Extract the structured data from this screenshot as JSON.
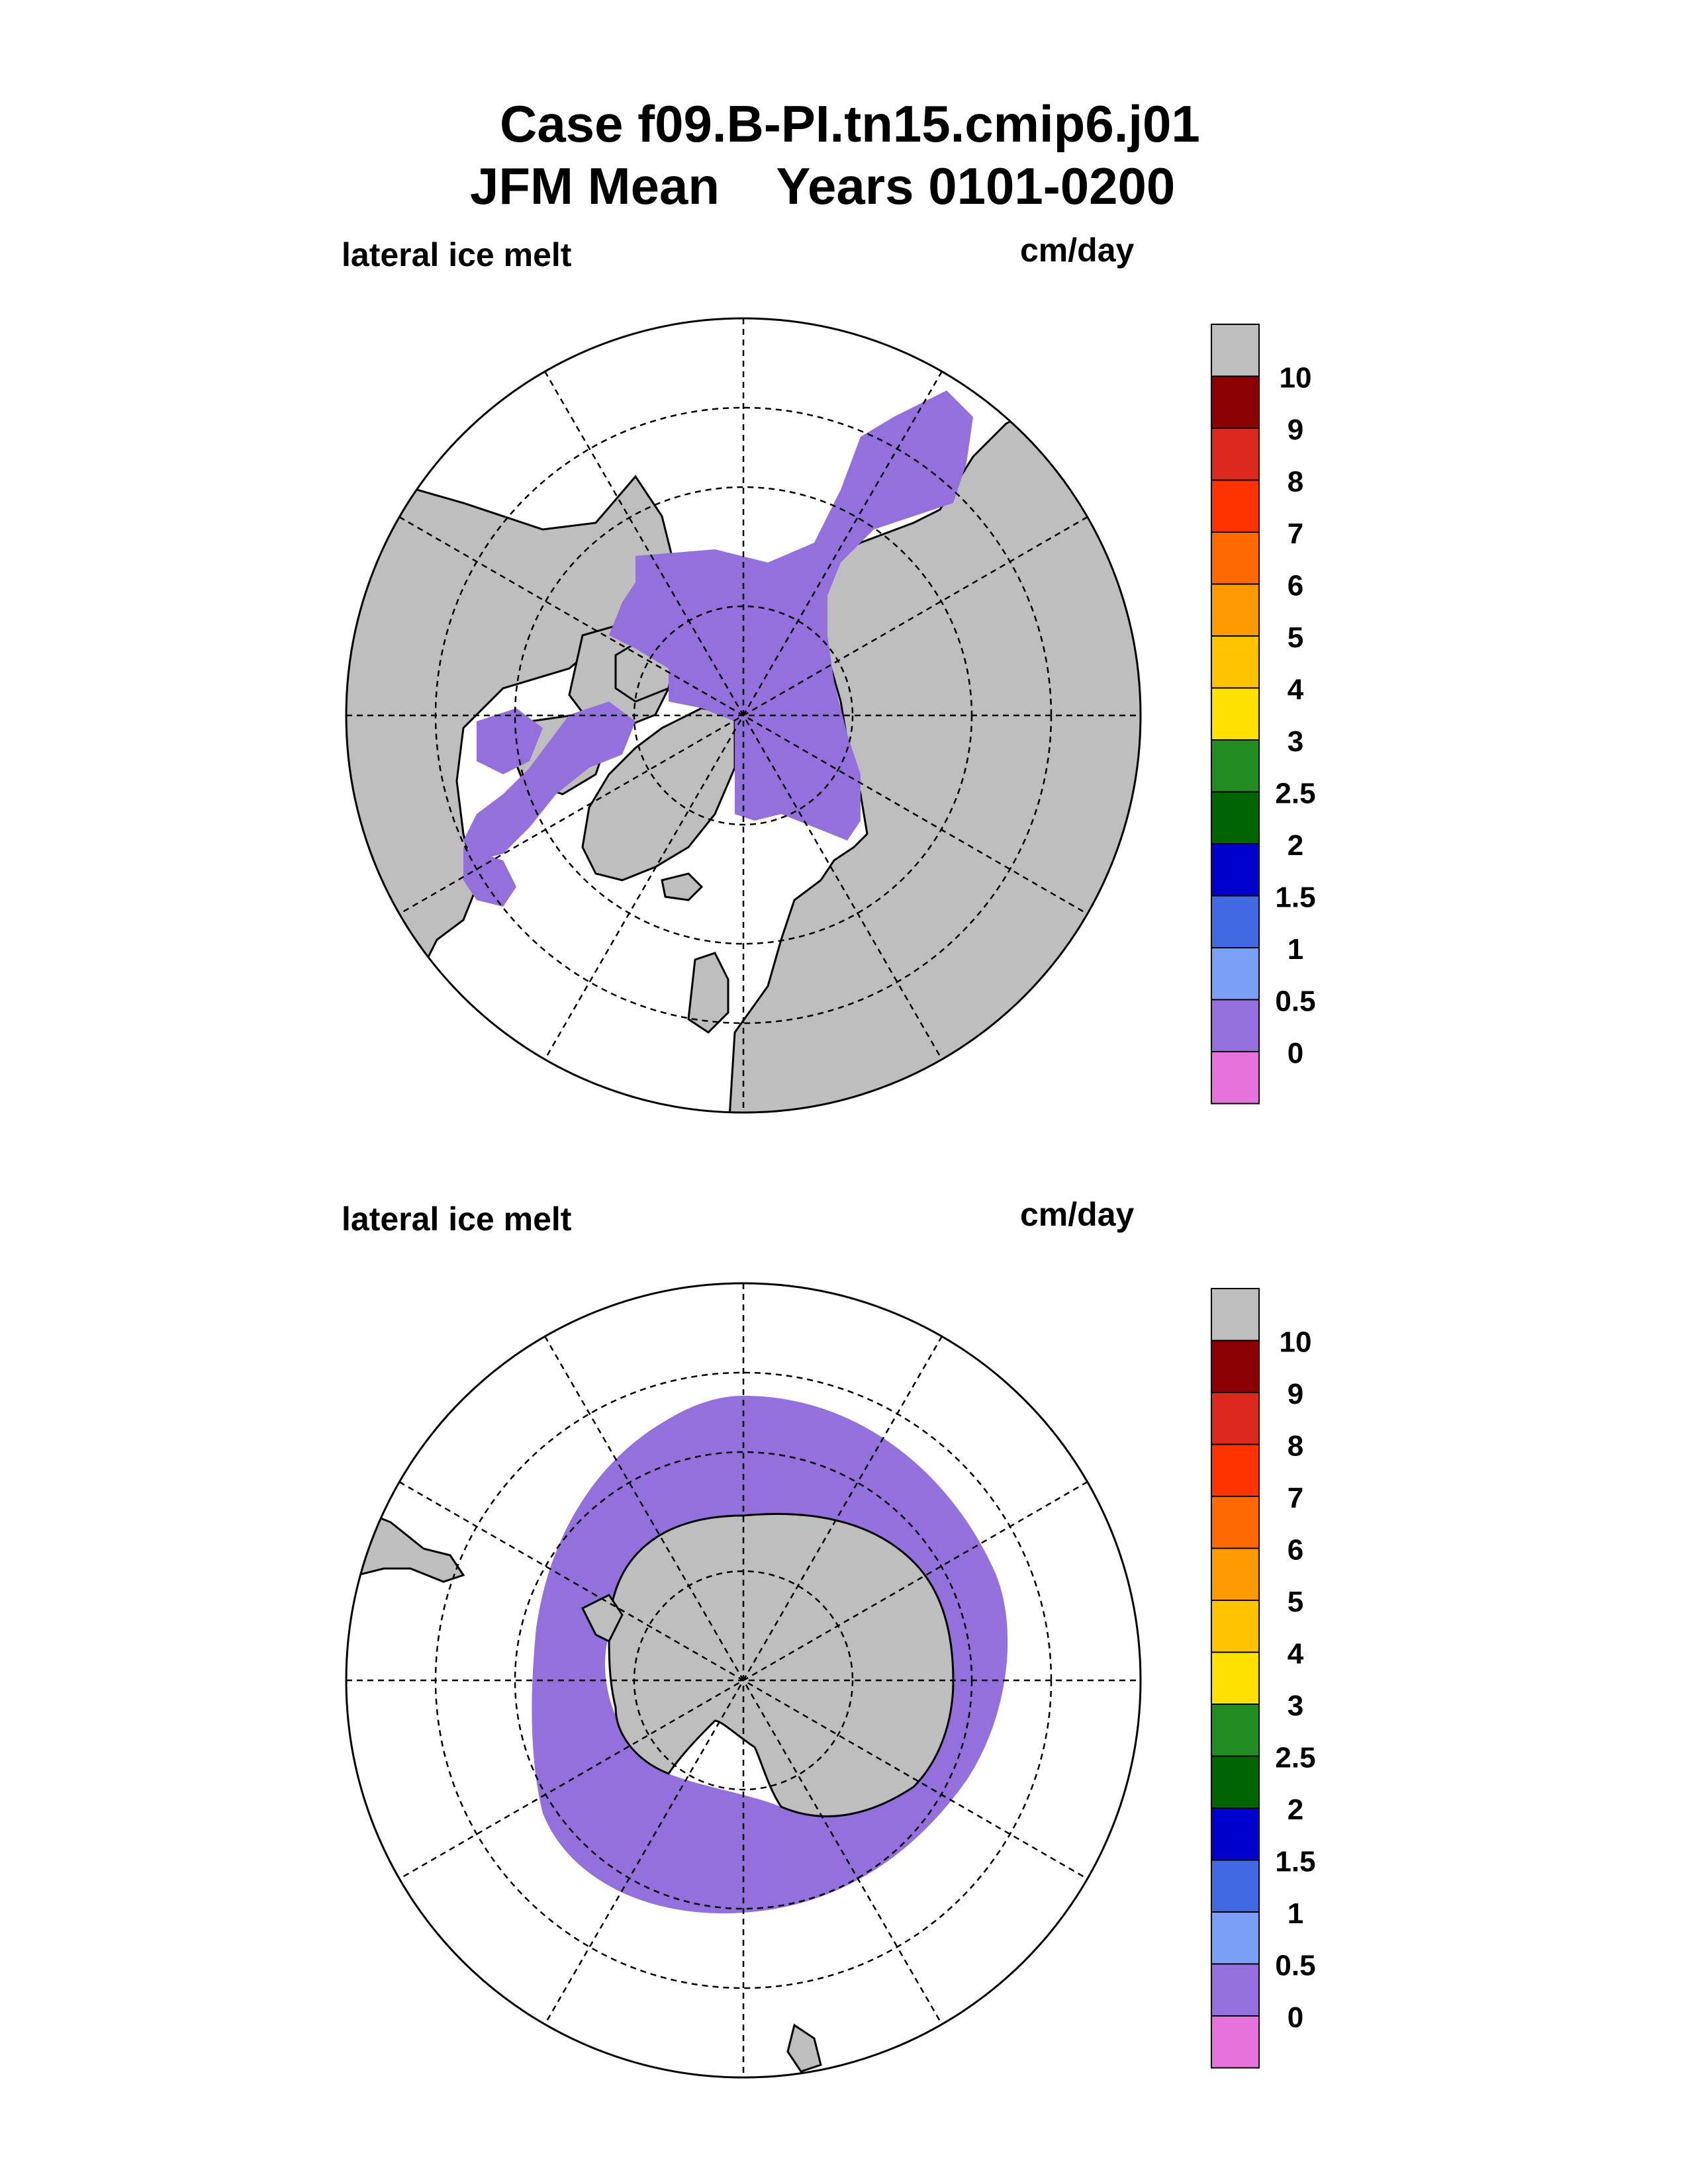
{
  "title": {
    "line1": "Case f09.B-PI.tn15.cmip6.j01",
    "line2": "JFM Mean    Years 0101-0200"
  },
  "colors": {
    "land": "#bebebe",
    "ocean": "#ffffff",
    "ice_melt": "#9370db",
    "grid": "#000000"
  },
  "colorbar": {
    "boxes": [
      "#e673dc",
      "#9370db",
      "#7b9ff5",
      "#4169e1",
      "#0000cd",
      "#006400",
      "#228b22",
      "#ffe100",
      "#ffc300",
      "#ff9a00",
      "#ff6a00",
      "#ff3300",
      "#dc281e",
      "#8b0000",
      "#bebebe"
    ],
    "labels": [
      "0",
      "0.5",
      "1",
      "1.5",
      "2",
      "2.5",
      "3",
      "4",
      "5",
      "6",
      "7",
      "8",
      "9",
      "10"
    ]
  },
  "chart_data": [
    {
      "type": "heatmap",
      "hemisphere": "north",
      "title": "lateral ice melt",
      "units": "cm/day",
      "projection": "polar stereographic",
      "grid": true,
      "levels": [
        0,
        0.5,
        1,
        1.5,
        2,
        2.5,
        3,
        4,
        5,
        6,
        7,
        8,
        9,
        10
      ],
      "dominant_class": "0 - 0.5"
    },
    {
      "type": "heatmap",
      "hemisphere": "south",
      "title": "lateral ice melt",
      "units": "cm/day",
      "projection": "polar stereographic",
      "grid": true,
      "levels": [
        0,
        0.5,
        1,
        1.5,
        2,
        2.5,
        3,
        4,
        5,
        6,
        7,
        8,
        9,
        10
      ],
      "dominant_class": "0 - 0.5"
    }
  ]
}
